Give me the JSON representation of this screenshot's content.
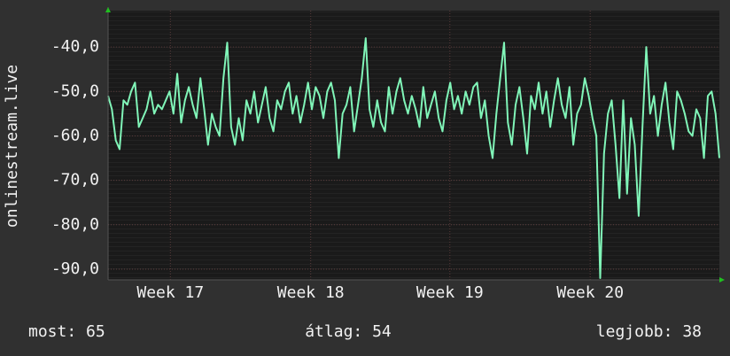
{
  "chart_data": {
    "type": "line",
    "y_label": "onlinestream.live",
    "color": "#80f5b8",
    "values": [
      -51,
      -54,
      -61,
      -63,
      -52,
      -53,
      -50,
      -48,
      -58,
      -56,
      -54,
      -50,
      -55,
      -53,
      -54,
      -52,
      -50,
      -55,
      -46,
      -57,
      -52,
      -49,
      -53,
      -56,
      -47,
      -54,
      -62,
      -55,
      -58,
      -60,
      -47,
      -39,
      -58,
      -62,
      -56,
      -61,
      -52,
      -55,
      -50,
      -57,
      -53,
      -49,
      -56,
      -59,
      -52,
      -54,
      -50,
      -48,
      -55,
      -51,
      -57,
      -53,
      -48,
      -54,
      -49,
      -51,
      -56,
      -50,
      -48,
      -52,
      -65,
      -55,
      -53,
      -49,
      -59,
      -53,
      -47,
      -38,
      -54,
      -58,
      -52,
      -57,
      -59,
      -49,
      -55,
      -50,
      -47,
      -52,
      -55,
      -51,
      -54,
      -58,
      -49,
      -56,
      -53,
      -50,
      -56,
      -59,
      -52,
      -48,
      -54,
      -51,
      -55,
      -50,
      -53,
      -49,
      -48,
      -56,
      -52,
      -60,
      -65,
      -55,
      -47,
      -39,
      -57,
      -62,
      -53,
      -49,
      -56,
      -64,
      -51,
      -54,
      -48,
      -55,
      -50,
      -58,
      -52,
      -47,
      -53,
      -56,
      -49,
      -62,
      -55,
      -53,
      -47,
      -51,
      -56,
      -60,
      -92,
      -64,
      -55,
      -52,
      -62,
      -74,
      -52,
      -73,
      -56,
      -62,
      -78,
      -58,
      -40,
      -55,
      -51,
      -60,
      -53,
      -48,
      -57,
      -63,
      -50,
      -52,
      -55,
      -59,
      -60,
      -54,
      -56,
      -65,
      -51,
      -50,
      -55,
      -65
    ],
    "xlim": [
      0,
      159
    ],
    "xticks": [
      {
        "value": 16.2,
        "label": "Week 17"
      },
      {
        "value": 52.7,
        "label": "Week 18"
      },
      {
        "value": 88.9,
        "label": "Week 19"
      },
      {
        "value": 125.4,
        "label": "Week 20"
      }
    ],
    "ylim": [
      -92.4,
      -31.8
    ],
    "yticks": [
      {
        "value": -40,
        "label": "-40,0"
      },
      {
        "value": -50,
        "label": "-50,0"
      },
      {
        "value": -60,
        "label": "-60,0"
      },
      {
        "value": -70,
        "label": "-70,0"
      },
      {
        "value": -80,
        "label": "-80,0"
      },
      {
        "value": -90,
        "label": "-90,0"
      }
    ],
    "grid": true,
    "stats": [
      "most: 65",
      "átlag: 54",
      "legjobb: 38"
    ]
  }
}
